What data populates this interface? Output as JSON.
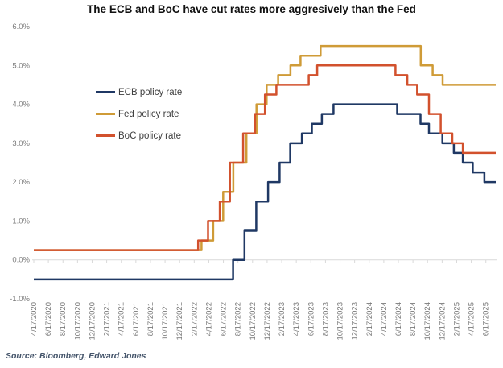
{
  "title": "The ECB and BoC have cut rates more aggresively than the Fed",
  "source": "Source: Bloomberg, Edward Jones",
  "colors": {
    "axis_line": "#d9d9d9",
    "axis_label_text": "#7a7a7a",
    "legend_text": "#404040",
    "title_text": "#111111",
    "source_text": "#44546a",
    "background": "#ffffff"
  },
  "chart_data": {
    "type": "line",
    "title": "The ECB and BoC have cut rates more aggresively than the Fed",
    "style": "step-line, no horizontal gridlines, light gray zero axis with down ticks",
    "y_axis": {
      "min": -1,
      "max": 6,
      "tick_labels": [
        "6.0%",
        "5.0%",
        "4.0%",
        "3.0%",
        "2.0%",
        "1.0%",
        "0.0%",
        "-1.0%"
      ],
      "tick_values": [
        6,
        5,
        4,
        3,
        2,
        1,
        0,
        -1
      ]
    },
    "x_axis": {
      "first_date": "4/17/2020",
      "last_date": "6/17/2025",
      "months_per_tick": 2,
      "tick_labels": [
        "4/17/2020",
        "6/17/2020",
        "8/17/2020",
        "10/17/2020",
        "12/17/2020",
        "2/17/2021",
        "4/17/2021",
        "6/17/2021",
        "8/17/2021",
        "10/17/2021",
        "12/17/2021",
        "2/17/2022",
        "4/17/2022",
        "6/17/2022",
        "8/17/2022",
        "10/17/2022",
        "12/17/2022",
        "2/17/2023",
        "4/17/2023",
        "6/17/2023",
        "8/17/2023",
        "10/17/2023",
        "12/17/2023",
        "2/17/2024",
        "4/17/2024",
        "6/17/2024",
        "8/17/2024",
        "10/17/2024",
        "12/17/2024",
        "2/17/2025",
        "4/17/2025",
        "6/17/2025"
      ]
    },
    "legend": {
      "position": "inside-upper-left"
    },
    "series": [
      {
        "name": "ECB policy rate",
        "color": "#1f3864",
        "steps": [
          {
            "date": "4/17/2020",
            "rate": -0.5
          },
          {
            "date": "7/27/2022",
            "rate": 0.0
          },
          {
            "date": "9/14/2022",
            "rate": 0.75
          },
          {
            "date": "11/2/2022",
            "rate": 1.5
          },
          {
            "date": "12/21/2022",
            "rate": 2.0
          },
          {
            "date": "2/8/2023",
            "rate": 2.5
          },
          {
            "date": "3/22/2023",
            "rate": 3.0
          },
          {
            "date": "5/10/2023",
            "rate": 3.25
          },
          {
            "date": "6/21/2023",
            "rate": 3.5
          },
          {
            "date": "8/2/2023",
            "rate": 3.75
          },
          {
            "date": "9/20/2023",
            "rate": 4.0
          },
          {
            "date": "6/12/2024",
            "rate": 3.75
          },
          {
            "date": "9/18/2024",
            "rate": 3.5
          },
          {
            "date": "10/23/2024",
            "rate": 3.25
          },
          {
            "date": "12/18/2024",
            "rate": 3.0
          },
          {
            "date": "2/5/2025",
            "rate": 2.75
          },
          {
            "date": "3/12/2025",
            "rate": 2.5
          },
          {
            "date": "4/23/2025",
            "rate": 2.25
          },
          {
            "date": "6/11/2025",
            "rate": 2.0
          }
        ]
      },
      {
        "name": "Fed policy rate",
        "color": "#cf9b37",
        "steps": [
          {
            "date": "4/17/2020",
            "rate": 0.25
          },
          {
            "date": "3/17/2022",
            "rate": 0.5
          },
          {
            "date": "5/5/2022",
            "rate": 1.0
          },
          {
            "date": "6/16/2022",
            "rate": 1.75
          },
          {
            "date": "7/28/2022",
            "rate": 2.5
          },
          {
            "date": "9/22/2022",
            "rate": 3.25
          },
          {
            "date": "11/3/2022",
            "rate": 4.0
          },
          {
            "date": "12/15/2022",
            "rate": 4.5
          },
          {
            "date": "2/2/2023",
            "rate": 4.75
          },
          {
            "date": "3/23/2023",
            "rate": 5.0
          },
          {
            "date": "5/4/2023",
            "rate": 5.25
          },
          {
            "date": "7/27/2023",
            "rate": 5.5
          },
          {
            "date": "9/19/2024",
            "rate": 5.0
          },
          {
            "date": "11/8/2024",
            "rate": 4.75
          },
          {
            "date": "12/19/2024",
            "rate": 4.5
          }
        ]
      },
      {
        "name": "BoC policy rate",
        "color": "#d2512d",
        "steps": [
          {
            "date": "4/17/2020",
            "rate": 0.25
          },
          {
            "date": "3/3/2022",
            "rate": 0.5
          },
          {
            "date": "4/14/2022",
            "rate": 1.0
          },
          {
            "date": "6/2/2022",
            "rate": 1.5
          },
          {
            "date": "7/14/2022",
            "rate": 2.5
          },
          {
            "date": "9/8/2022",
            "rate": 3.25
          },
          {
            "date": "10/27/2022",
            "rate": 3.75
          },
          {
            "date": "12/8/2022",
            "rate": 4.25
          },
          {
            "date": "1/25/2023",
            "rate": 4.5
          },
          {
            "date": "6/8/2023",
            "rate": 4.75
          },
          {
            "date": "7/13/2023",
            "rate": 5.0
          },
          {
            "date": "6/5/2024",
            "rate": 4.75
          },
          {
            "date": "7/24/2024",
            "rate": 4.5
          },
          {
            "date": "9/4/2024",
            "rate": 4.25
          },
          {
            "date": "10/23/2024",
            "rate": 3.75
          },
          {
            "date": "12/11/2024",
            "rate": 3.25
          },
          {
            "date": "1/29/2025",
            "rate": 3.0
          },
          {
            "date": "3/12/2025",
            "rate": 2.75
          }
        ]
      }
    ]
  }
}
